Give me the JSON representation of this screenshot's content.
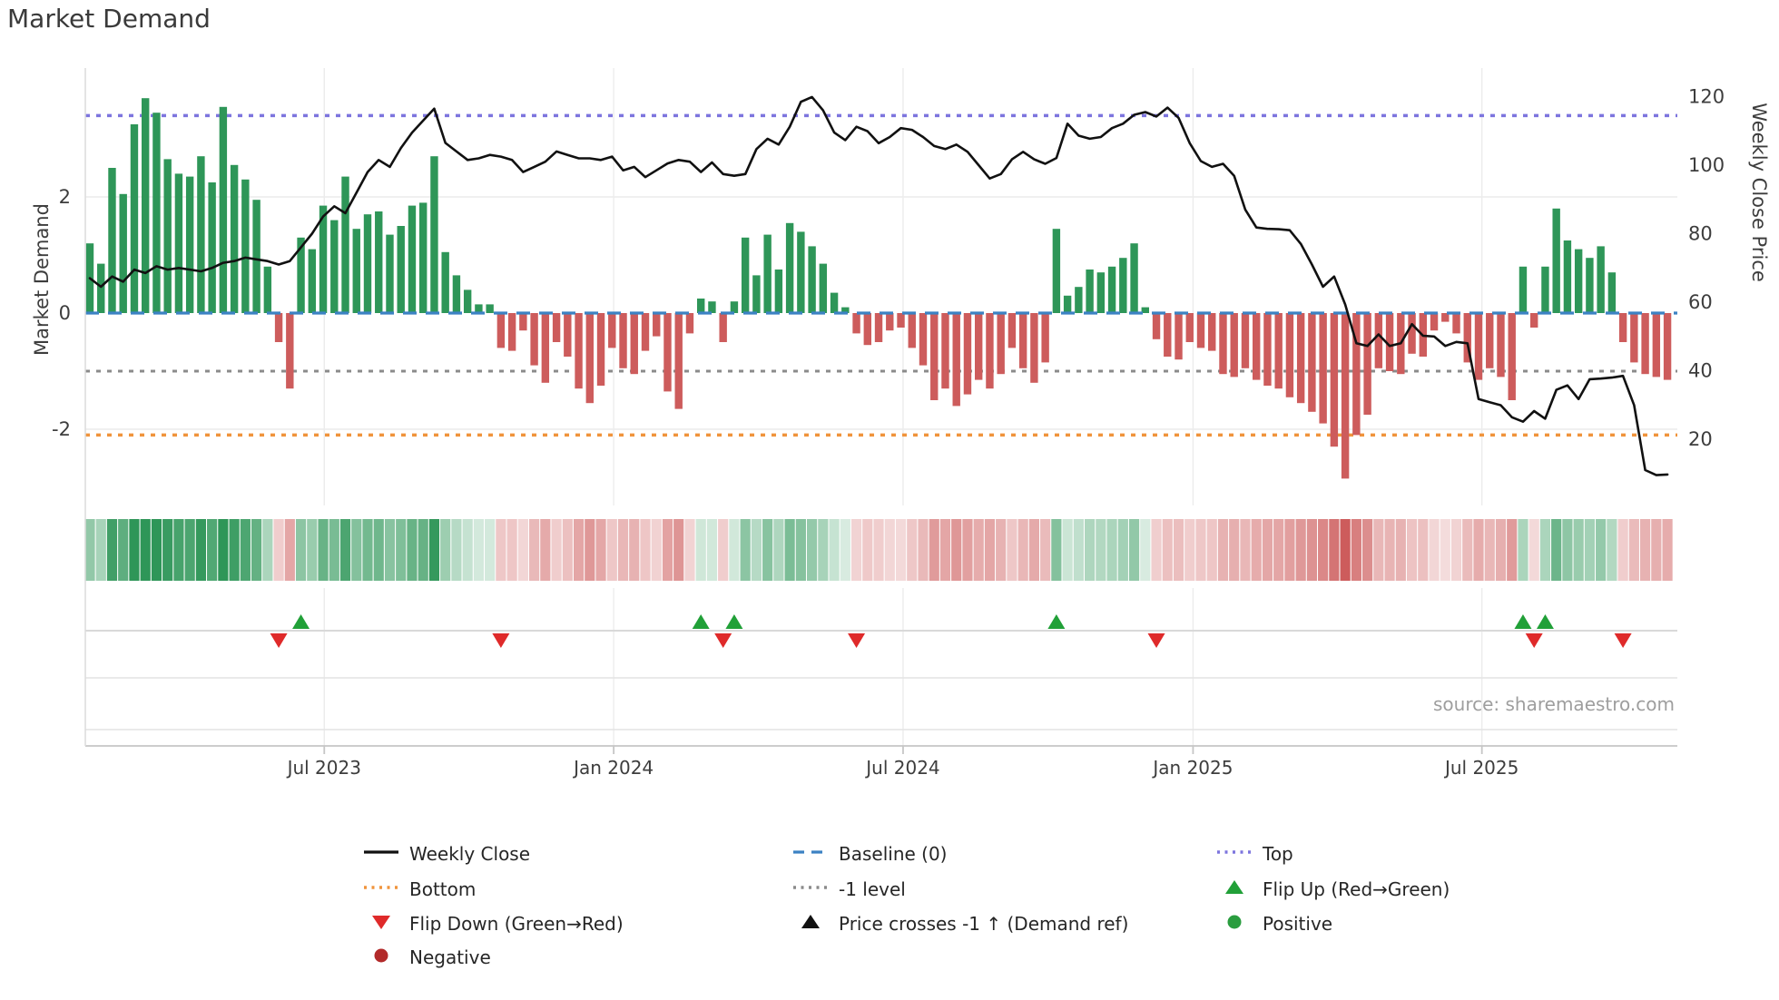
{
  "title": "Market Demand",
  "source": "source: sharemaestro.com",
  "left_axis": {
    "label": "Market Demand",
    "ticks": [
      2,
      0,
      -2
    ]
  },
  "right_axis": {
    "label": "Weekly Close Price",
    "ticks": [
      120,
      100,
      80,
      60,
      40,
      20
    ]
  },
  "colors": {
    "bar_positive": "#2e9658",
    "bar_negative": "#cd5c5c",
    "price_line": "#111111",
    "baseline_blue": "#3c82c3",
    "top_purple": "#7d75de",
    "bottom_orange": "#f0943c",
    "minus1_gray": "#8b8b8b",
    "flip_up_green": "#21a038",
    "flip_down_red": "#df2a2a",
    "positive_dot": "#2a9d3f",
    "negative_dot": "#b22a2a",
    "gridline": "#ececec",
    "spine": "#c6c6c6",
    "tick_text": "#3d3d3d"
  },
  "chart_data": {
    "type": "bar+line",
    "x_unit": "week",
    "weeks": 143,
    "x_ticks": [
      {
        "label": "Jul 2023",
        "week": 21.1
      },
      {
        "label": "Jan 2024",
        "week": 47.15
      },
      {
        "label": "Jul 2024",
        "week": 73.2
      },
      {
        "label": "Jan 2025",
        "week": 99.3
      },
      {
        "label": "Jul 2025",
        "week": 125.3
      }
    ],
    "left_ticks": [
      2,
      0,
      -2
    ],
    "right_ticks": [
      120,
      100,
      80,
      60,
      40,
      20
    ],
    "ylim_left": [
      -3.4,
      4.2
    ],
    "ylim_right": [
      1,
      128
    ],
    "grid": true,
    "legend_position": "bottom",
    "levels": {
      "top": 3.4,
      "baseline": 0,
      "minus1": -1,
      "bottom": -2.1
    },
    "series": [
      {
        "name": "Market Demand",
        "type": "bar",
        "axis": "left",
        "values": [
          1.2,
          0.85,
          2.5,
          2.05,
          3.25,
          3.7,
          3.45,
          2.65,
          2.4,
          2.35,
          2.7,
          2.25,
          3.55,
          2.55,
          2.3,
          1.95,
          0.8,
          -0.5,
          -1.3,
          1.3,
          1.1,
          1.85,
          1.6,
          2.35,
          1.45,
          1.7,
          1.75,
          1.35,
          1.5,
          1.85,
          1.9,
          2.7,
          1.05,
          0.65,
          0.4,
          0.15,
          0.15,
          -0.6,
          -0.65,
          -0.3,
          -0.9,
          -1.2,
          -0.5,
          -0.75,
          -1.3,
          -1.55,
          -1.25,
          -0.6,
          -0.95,
          -1.05,
          -0.65,
          -0.4,
          -1.35,
          -1.65,
          -0.35,
          0.25,
          0.2,
          -0.5,
          0.2,
          1.3,
          0.65,
          1.35,
          0.75,
          1.55,
          1.4,
          1.15,
          0.85,
          0.35,
          0.1,
          -0.35,
          -0.55,
          -0.5,
          -0.3,
          -0.25,
          -0.6,
          -0.9,
          -1.5,
          -1.3,
          -1.6,
          -1.4,
          -1.15,
          -1.3,
          -1.05,
          -0.6,
          -0.95,
          -1.2,
          -0.85,
          1.45,
          0.3,
          0.45,
          0.75,
          0.7,
          0.8,
          0.95,
          1.2,
          0.1,
          -0.45,
          -0.75,
          -0.8,
          -0.5,
          -0.6,
          -0.65,
          -1.05,
          -1.1,
          -0.95,
          -1.15,
          -1.25,
          -1.3,
          -1.45,
          -1.55,
          -1.7,
          -1.9,
          -2.3,
          -2.85,
          -2.1,
          -1.75,
          -0.95,
          -1.0,
          -1.05,
          -0.7,
          -0.75,
          -0.3,
          -0.15,
          -0.35,
          -0.85,
          -1.15,
          -0.95,
          -1.1,
          -1.5,
          0.8,
          -0.25,
          0.8,
          1.8,
          1.25,
          1.1,
          0.95,
          1.15,
          0.7,
          -0.5,
          -0.85,
          -1.05,
          -1.1,
          -1.15
        ]
      },
      {
        "name": "Weekly Close",
        "type": "line",
        "axis": "right",
        "values": [
          67,
          64.5,
          67.5,
          66,
          69.5,
          68.5,
          70.5,
          69.5,
          70,
          69.5,
          69,
          70,
          71.5,
          72,
          73,
          72.5,
          72,
          71,
          72,
          76,
          80,
          85,
          88,
          86,
          92,
          98,
          101.5,
          99.5,
          105,
          109.5,
          113,
          116.5,
          106.5,
          104,
          101.5,
          102,
          103,
          102.5,
          101.5,
          98,
          99.5,
          101,
          104,
          103,
          102,
          102,
          101.5,
          102.5,
          98.5,
          99.5,
          96.5,
          98.5,
          100.5,
          101.5,
          101,
          98,
          100.8,
          97.4,
          96.9,
          97.4,
          104.7,
          107.7,
          106,
          111.2,
          118.5,
          119.9,
          116,
          109.5,
          107.3,
          111.2,
          109.9,
          106.4,
          108.2,
          110.8,
          110.3,
          108.2,
          105.6,
          104.7,
          106,
          103.9,
          100,
          96.1,
          97.4,
          101.7,
          103.9,
          101.7,
          100.4,
          102.1,
          112.1,
          108.6,
          107.7,
          108.2,
          110.8,
          112.1,
          114.7,
          115.5,
          114.2,
          116.8,
          113.8,
          106.4,
          101.2,
          99.5,
          100.4,
          96.9,
          87,
          81.8,
          81.4,
          81.3,
          81,
          77,
          71,
          64.5,
          67.5,
          59.3,
          48,
          47.2,
          50.6,
          47.2,
          48,
          53.6,
          50.2,
          50,
          47.2,
          48.4,
          48,
          31.7,
          30.8,
          29.9,
          26.4,
          25.1,
          28.2,
          26,
          34.4,
          35.7,
          31.7,
          37.5,
          37.7,
          38,
          38.5,
          29.9,
          11,
          9.5,
          9.7
        ]
      }
    ],
    "heatmap": {
      "source_series": "Market Demand",
      "note": "weekly strip, green=positive red=negative, shade by magnitude"
    },
    "markers": {
      "flip_up_weeks": [
        19,
        55,
        58,
        87,
        129,
        131
      ],
      "flip_down_weeks": [
        17,
        37,
        57,
        69,
        96,
        130,
        138
      ]
    }
  },
  "legend": {
    "items": [
      {
        "label": "Weekly Close",
        "marker": "line",
        "color": "#111111",
        "col": 0,
        "row": 0
      },
      {
        "label": "Baseline (0)",
        "marker": "dashed",
        "color": "#3c82c3",
        "col": 1,
        "row": 0
      },
      {
        "label": "Top",
        "marker": "dotted",
        "color": "#7d75de",
        "col": 2,
        "row": 0
      },
      {
        "label": "Bottom",
        "marker": "dotted",
        "color": "#f0943c",
        "col": 0,
        "row": 1
      },
      {
        "label": "-1 level",
        "marker": "dotted",
        "color": "#8b8b8b",
        "col": 1,
        "row": 1
      },
      {
        "label": "Flip Up (Red→Green)",
        "marker": "tri-up",
        "color": "#21a038",
        "col": 2,
        "row": 1
      },
      {
        "label": "Flip Down (Green→Red)",
        "marker": "tri-down",
        "color": "#df2a2a",
        "col": 0,
        "row": 2
      },
      {
        "label": "Price crosses -1 ↑ (Demand ref)",
        "marker": "tri-up",
        "color": "#111111",
        "col": 1,
        "row": 2
      },
      {
        "label": "Positive",
        "marker": "dot",
        "color": "#2a9d3f",
        "col": 2,
        "row": 2
      },
      {
        "label": "Negative",
        "marker": "dot",
        "color": "#b22a2a",
        "col": 0,
        "row": 3
      }
    ]
  }
}
